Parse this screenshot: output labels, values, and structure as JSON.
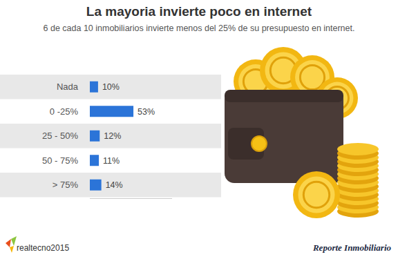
{
  "chart_data": {
    "type": "bar",
    "orientation": "horizontal",
    "title": "La mayoria invierte poco en internet",
    "subtitle": "6 de cada 10 inmobiliarios invierte menos del 25% de su presupuesto en internet.",
    "categories": [
      "Nada",
      "0 -25%",
      "25 - 50%",
      "50 - 75%",
      "> 75%"
    ],
    "values": [
      10,
      53,
      12,
      11,
      14
    ],
    "value_labels": [
      "10%",
      "53%",
      "12%",
      "11%",
      "14%"
    ],
    "color": "#2b74d8",
    "xlim": [
      0,
      100
    ],
    "data_labels": true,
    "tick_labels": "y",
    "grid": false,
    "annotations": [
      "realtecno2015",
      "Reporte Inmobiliario"
    ]
  }
}
